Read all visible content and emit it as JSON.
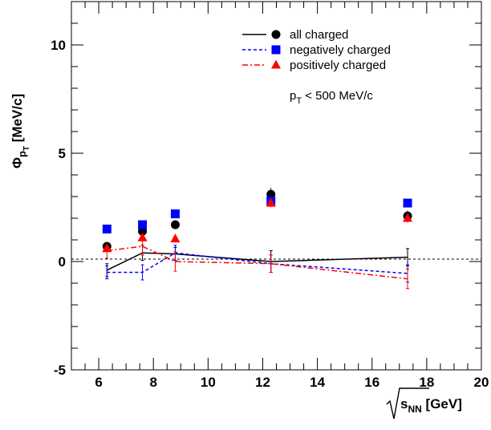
{
  "chart_data": {
    "type": "scatter",
    "x": [
      6.3,
      7.6,
      8.8,
      12.3,
      17.3
    ],
    "xlim": [
      5.0,
      20.0
    ],
    "ylim": [
      -5.0,
      12.0
    ],
    "xticks": [
      "6",
      "8",
      "10",
      "12",
      "14",
      "16",
      "18",
      "20"
    ],
    "yticks": [
      "-5",
      "0",
      "5",
      "10"
    ],
    "xlabel": {
      "root": "s",
      "sub": "NN",
      "unit": " [GeV]"
    },
    "ylabel": {
      "phi": "Φ",
      "p": "p",
      "t": "T",
      "unit": " [MeV/c]"
    },
    "annotation": {
      "p": "p",
      "t": "T",
      "rest": " < 500 MeV/c"
    },
    "reference_line_y": 0,
    "series": [
      {
        "name": "all charged",
        "color": "#000000",
        "marker": "circle",
        "line_style": "solid",
        "points": [
          {
            "x": 6.3,
            "y": 0.7,
            "err": 0.1
          },
          {
            "x": 7.6,
            "y": 1.4,
            "err": 0.1
          },
          {
            "x": 8.8,
            "y": 1.7,
            "err": 0.2
          },
          {
            "x": 12.3,
            "y": 3.1,
            "err": 0.3
          },
          {
            "x": 17.3,
            "y": 2.1,
            "err": 0.25
          }
        ],
        "line": {
          "y": [
            -0.4,
            0.4,
            0.35,
            0.0,
            0.2
          ],
          "err": [
            0.3,
            0.35,
            0.3,
            0.5,
            0.4
          ]
        }
      },
      {
        "name": "negatively charged",
        "color": "#0000ff",
        "marker": "square",
        "line_style": "dashed",
        "points": [
          {
            "x": 6.3,
            "y": 1.5,
            "err": 0.1
          },
          {
            "x": 7.6,
            "y": 1.7,
            "err": 0.1
          },
          {
            "x": 8.8,
            "y": 2.2,
            "err": 0.2
          },
          {
            "x": 12.3,
            "y": 2.8,
            "err": 0.2
          },
          {
            "x": 17.3,
            "y": 2.7,
            "err": 0.2
          }
        ],
        "line": {
          "y": [
            -0.5,
            -0.5,
            0.4,
            -0.1,
            -0.55
          ],
          "err": [
            0.3,
            0.35,
            0.35,
            0.4,
            0.4
          ]
        }
      },
      {
        "name": "positively charged",
        "color": "#ff0000",
        "marker": "triangle",
        "line_style": "dashdot",
        "points": [
          {
            "x": 6.3,
            "y": 0.6,
            "err": 0.1
          },
          {
            "x": 7.6,
            "y": 1.1,
            "err": 0.1
          },
          {
            "x": 8.8,
            "y": 1.05,
            "err": 0.15
          },
          {
            "x": 12.3,
            "y": 2.7,
            "err": 0.2
          },
          {
            "x": 17.3,
            "y": 2.0,
            "err": 0.2
          }
        ],
        "line": {
          "y": [
            0.5,
            0.7,
            0.0,
            -0.1,
            -0.8
          ],
          "err": [
            0.35,
            0.4,
            0.45,
            0.4,
            0.45
          ]
        }
      }
    ],
    "legend_placement": "top-right"
  }
}
